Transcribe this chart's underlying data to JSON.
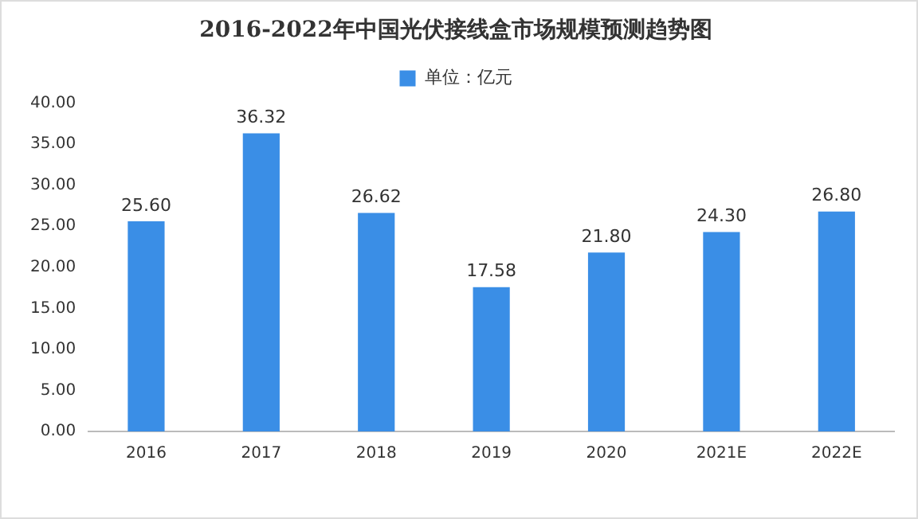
{
  "chart_data": {
    "type": "bar",
    "title": "2016-2022年中国光伏接线盒市场规模预测趋势图",
    "categories": [
      "2016",
      "2017",
      "2018",
      "2019",
      "2020",
      "2021E",
      "2022E"
    ],
    "series": [
      {
        "name": "单位：亿元",
        "color": "#3a8ee6",
        "values": [
          25.6,
          36.32,
          26.62,
          17.58,
          21.8,
          24.3,
          26.8
        ],
        "value_labels": [
          "25.60",
          "36.32",
          "26.62",
          "17.58",
          "21.80",
          "24.30",
          "26.80"
        ]
      }
    ],
    "ylim": [
      0,
      40
    ],
    "yticks": [
      {
        "value": 0,
        "label": "0.00"
      },
      {
        "value": 5,
        "label": "5.00"
      },
      {
        "value": 10,
        "label": "10.00"
      },
      {
        "value": 15,
        "label": "15.00"
      },
      {
        "value": 20,
        "label": "20.00"
      },
      {
        "value": 25,
        "label": "25.00"
      },
      {
        "value": 30,
        "label": "30.00"
      },
      {
        "value": 35,
        "label": "35.00"
      },
      {
        "value": 40,
        "label": "40.00"
      }
    ],
    "grid": false,
    "legend": "top"
  }
}
